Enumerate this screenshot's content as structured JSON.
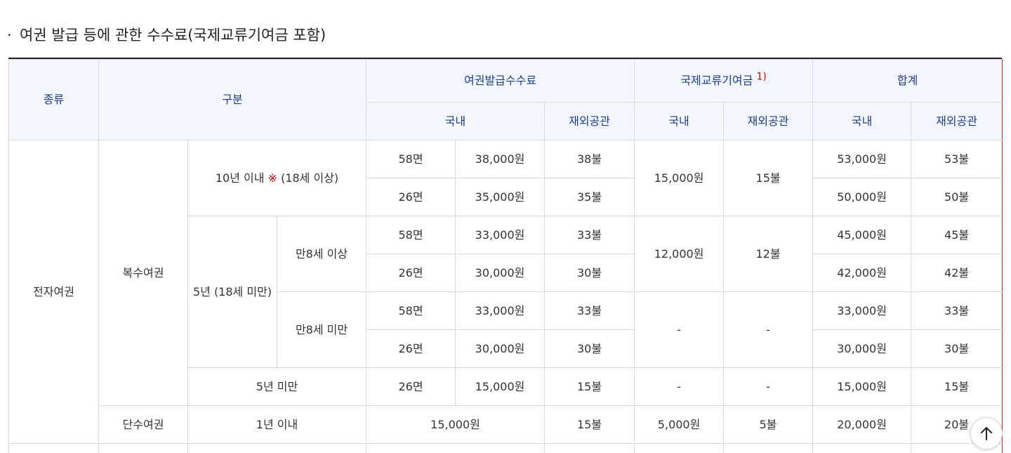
{
  "title": "여권 발급 등에 관한 수수료(국제교류기여금 포함)",
  "title_bullet": "·",
  "header": {
    "kind": "종류",
    "category": "구분",
    "issue_fee": "여권발급수수료",
    "contribution": "국제교류기여금",
    "contribution_note": "1)",
    "total": "합계",
    "domestic": "국내",
    "overseas": "재외공관"
  },
  "body": {
    "epassport": "전자여권",
    "multiple": "복수여권",
    "single": "단수여권",
    "ten_years_pre": "10년 이내",
    "ten_years_mark": "※",
    "ten_years_post": "(18세 이상)",
    "five_years": "5년 (18세 미만)",
    "age8_over": "만8세 이상",
    "age8_under": "만8세 미만",
    "under_five": "5년 미만",
    "one_year": "1년 이내",
    "rows": [
      {
        "pages": "58면",
        "dom": "38,000원",
        "ovs": "38불",
        "c_dom": "15,000원",
        "c_ovs": "15불",
        "t_dom": "53,000원",
        "t_ovs": "53불"
      },
      {
        "pages": "26면",
        "dom": "35,000원",
        "ovs": "35불",
        "t_dom": "50,000원",
        "t_ovs": "50불"
      },
      {
        "pages": "58면",
        "dom": "33,000원",
        "ovs": "33불",
        "c_dom": "12,000원",
        "c_ovs": "12불",
        "t_dom": "45,000원",
        "t_ovs": "45불"
      },
      {
        "pages": "26면",
        "dom": "30,000원",
        "ovs": "30불",
        "t_dom": "42,000원",
        "t_ovs": "42불"
      },
      {
        "pages": "58면",
        "dom": "33,000원",
        "ovs": "33불",
        "c_dom": "-",
        "c_ovs": "-",
        "t_dom": "33,000원",
        "t_ovs": "33불"
      },
      {
        "pages": "26면",
        "dom": "30,000원",
        "ovs": "30불",
        "t_dom": "30,000원",
        "t_ovs": "30불"
      },
      {
        "pages": "26면",
        "dom": "15,000원",
        "ovs": "15불",
        "c_dom": "-",
        "c_ovs": "-",
        "t_dom": "15,000원",
        "t_ovs": "15불"
      },
      {
        "dom": "15,000원",
        "ovs": "15불",
        "c_dom": "5,000원",
        "c_ovs": "5불",
        "t_dom": "20,000원",
        "t_ovs": "20불"
      }
    ]
  },
  "scroll_top_icon": "arrow-up-icon",
  "colors": {
    "header_bg": "#f3f6fd",
    "header_text": "#1b3d8f",
    "highlight_border": "#e01a1a",
    "note_red": "#d00000"
  }
}
